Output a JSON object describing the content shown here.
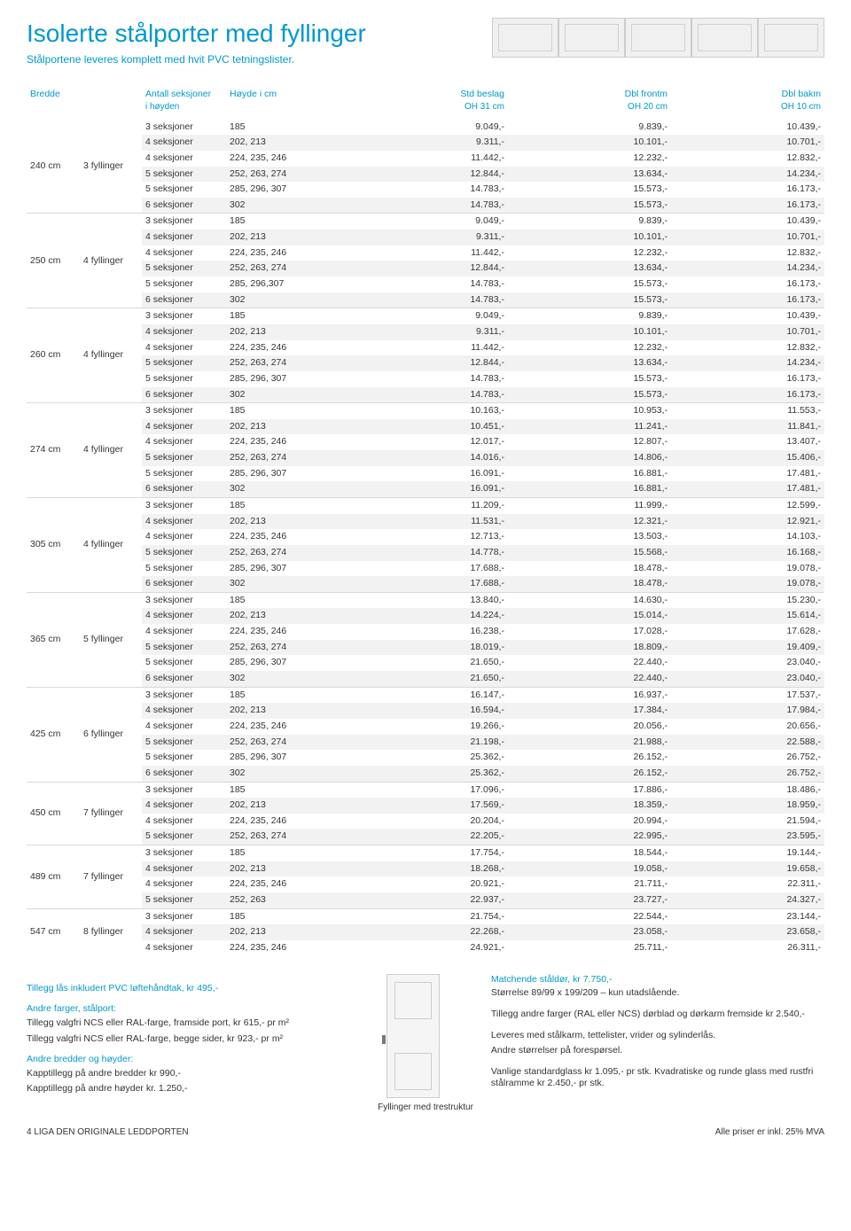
{
  "colors": {
    "primary": "#0099cc",
    "text": "#333333",
    "alt_row": "#f2f2f2",
    "border": "#d9d9d9"
  },
  "title": "Isolerte stålporter med fyllinger",
  "subtitle": "Stålportene leveres komplett med hvit PVC tetningslister.",
  "table": {
    "headers": {
      "bredde": "Bredde",
      "antall": "Antall seksjoner",
      "antall_sub": "i høyden",
      "hoyde": "Høyde i cm",
      "std": "Std beslag",
      "std_sub": "OH 31 cm",
      "frontm": "Dbl frontm",
      "frontm_sub": "OH 20 cm",
      "bakm": "Dbl bakm",
      "bakm_sub": "OH 10 cm"
    },
    "groups": [
      {
        "bredde": "240 cm",
        "fyll": "3 fyllinger",
        "rows": [
          {
            "s": "3 seksjoner",
            "h": "185",
            "p1": "9.049,-",
            "p2": "9.839,-",
            "p3": "10.439,-"
          },
          {
            "s": "4 seksjoner",
            "h": "202, 213",
            "p1": "9.311,-",
            "p2": "10.101,-",
            "p3": "10.701,-"
          },
          {
            "s": "4 seksjoner",
            "h": "224, 235, 246",
            "p1": "11.442,-",
            "p2": "12.232,-",
            "p3": "12.832,-"
          },
          {
            "s": "5 seksjoner",
            "h": "252, 263, 274",
            "p1": "12.844,-",
            "p2": "13.634,-",
            "p3": "14.234,-"
          },
          {
            "s": "5 seksjoner",
            "h": "285, 296, 307",
            "p1": "14.783,-",
            "p2": "15.573,-",
            "p3": "16.173,-"
          },
          {
            "s": "6 seksjoner",
            "h": "302",
            "p1": "14.783,-",
            "p2": "15.573,-",
            "p3": "16.173,-"
          }
        ]
      },
      {
        "bredde": "250 cm",
        "fyll": "4 fyllinger",
        "rows": [
          {
            "s": "3 seksjoner",
            "h": "185",
            "p1": "9.049,-",
            "p2": "9.839,-",
            "p3": "10.439,-"
          },
          {
            "s": "4 seksjoner",
            "h": "202, 213",
            "p1": "9.311,-",
            "p2": "10.101,-",
            "p3": "10.701,-"
          },
          {
            "s": "4 seksjoner",
            "h": "224, 235, 246",
            "p1": "11.442,-",
            "p2": "12.232,-",
            "p3": "12.832,-"
          },
          {
            "s": "5 seksjoner",
            "h": "252, 263, 274",
            "p1": "12.844,-",
            "p2": "13.634,-",
            "p3": "14.234,-"
          },
          {
            "s": "5 seksjoner",
            "h": "285, 296,307",
            "p1": "14.783,-",
            "p2": "15.573,-",
            "p3": "16.173,-"
          },
          {
            "s": "6 seksjoner",
            "h": "302",
            "p1": "14.783,-",
            "p2": "15.573,-",
            "p3": "16.173,-"
          }
        ]
      },
      {
        "bredde": "260 cm",
        "fyll": "4 fyllinger",
        "rows": [
          {
            "s": "3 seksjoner",
            "h": "185",
            "p1": "9.049,-",
            "p2": "9.839,-",
            "p3": "10.439,-"
          },
          {
            "s": "4 seksjoner",
            "h": "202, 213",
            "p1": "9.311,-",
            "p2": "10.101,-",
            "p3": "10.701,-"
          },
          {
            "s": "4 seksjoner",
            "h": "224, 235, 246",
            "p1": "11.442,-",
            "p2": "12.232,-",
            "p3": "12.832,-"
          },
          {
            "s": "5 seksjoner",
            "h": "252, 263, 274",
            "p1": "12.844,-",
            "p2": "13.634,-",
            "p3": "14.234,-"
          },
          {
            "s": "5 seksjoner",
            "h": "285, 296, 307",
            "p1": "14.783,-",
            "p2": "15.573,-",
            "p3": "16.173,-"
          },
          {
            "s": "6 seksjoner",
            "h": "302",
            "p1": "14.783,-",
            "p2": "15.573,-",
            "p3": "16.173,-"
          }
        ]
      },
      {
        "bredde": "274 cm",
        "fyll": "4 fyllinger",
        "rows": [
          {
            "s": "3 seksjoner",
            "h": "185",
            "p1": "10.163,-",
            "p2": "10.953,-",
            "p3": "11.553,-"
          },
          {
            "s": "4 seksjoner",
            "h": "202, 213",
            "p1": "10.451,-",
            "p2": "11.241,-",
            "p3": "11.841,-"
          },
          {
            "s": "4 seksjoner",
            "h": "224, 235, 246",
            "p1": "12.017,-",
            "p2": "12.807,-",
            "p3": "13.407,-"
          },
          {
            "s": "5 seksjoner",
            "h": "252, 263, 274",
            "p1": "14.016,-",
            "p2": "14.806,-",
            "p3": "15.406,-"
          },
          {
            "s": "5 seksjoner",
            "h": "285, 296, 307",
            "p1": "16.091,-",
            "p2": "16.881,-",
            "p3": "17.481,-"
          },
          {
            "s": "6 seksjoner",
            "h": "302",
            "p1": "16.091,-",
            "p2": "16.881,-",
            "p3": "17.481,-"
          }
        ]
      },
      {
        "bredde": "305 cm",
        "fyll": "4 fyllinger",
        "rows": [
          {
            "s": "3 seksjoner",
            "h": "185",
            "p1": "11.209,-",
            "p2": "11.999,-",
            "p3": "12.599,-"
          },
          {
            "s": "4 seksjoner",
            "h": "202, 213",
            "p1": "11.531,-",
            "p2": "12.321,-",
            "p3": "12.921,-"
          },
          {
            "s": "4 seksjoner",
            "h": "224, 235, 246",
            "p1": "12.713,-",
            "p2": "13.503,-",
            "p3": "14.103,-"
          },
          {
            "s": "5 seksjoner",
            "h": "252, 263, 274",
            "p1": "14.778,-",
            "p2": "15.568,-",
            "p3": "16.168,-"
          },
          {
            "s": "5 seksjoner",
            "h": "285, 296, 307",
            "p1": "17.688,-",
            "p2": "18.478,-",
            "p3": "19.078,-"
          },
          {
            "s": "6 seksjoner",
            "h": "302",
            "p1": "17.688,-",
            "p2": "18.478,-",
            "p3": "19.078,-"
          }
        ]
      },
      {
        "bredde": "365 cm",
        "fyll": "5 fyllinger",
        "rows": [
          {
            "s": "3 seksjoner",
            "h": "185",
            "p1": "13.840,-",
            "p2": "14.630,-",
            "p3": "15.230,-"
          },
          {
            "s": "4 seksjoner",
            "h": "202, 213",
            "p1": "14.224,-",
            "p2": "15.014,-",
            "p3": "15.614,-"
          },
          {
            "s": "4 seksjoner",
            "h": "224, 235, 246",
            "p1": "16.238,-",
            "p2": "17.028,-",
            "p3": "17.628,-"
          },
          {
            "s": "5 seksjoner",
            "h": "252, 263, 274",
            "p1": "18.019,-",
            "p2": "18.809,-",
            "p3": "19.409,-"
          },
          {
            "s": "5 seksjoner",
            "h": "285, 296, 307",
            "p1": "21.650,-",
            "p2": "22.440,-",
            "p3": "23.040,-"
          },
          {
            "s": "6 seksjoner",
            "h": "302",
            "p1": "21.650,-",
            "p2": "22.440,-",
            "p3": "23.040,-"
          }
        ]
      },
      {
        "bredde": "425 cm",
        "fyll": "6 fyllinger",
        "rows": [
          {
            "s": "3 seksjoner",
            "h": "185",
            "p1": "16.147,-",
            "p2": "16.937,-",
            "p3": "17.537,-"
          },
          {
            "s": "4 seksjoner",
            "h": "202, 213",
            "p1": "16.594,-",
            "p2": "17.384,-",
            "p3": "17.984,-"
          },
          {
            "s": "4 seksjoner",
            "h": "224, 235, 246",
            "p1": "19.266,-",
            "p2": "20.056,-",
            "p3": "20.656,-"
          },
          {
            "s": "5 seksjoner",
            "h": "252, 263, 274",
            "p1": "21.198,-",
            "p2": "21.988,-",
            "p3": "22.588,-"
          },
          {
            "s": "5 seksjoner",
            "h": "285, 296, 307",
            "p1": "25.362,-",
            "p2": "26.152,-",
            "p3": "26.752,-"
          },
          {
            "s": "6 seksjoner",
            "h": "302",
            "p1": "25.362,-",
            "p2": "26.152,-",
            "p3": "26.752,-"
          }
        ]
      },
      {
        "bredde": "450 cm",
        "fyll": "7 fyllinger",
        "rows": [
          {
            "s": "3 seksjoner",
            "h": "185",
            "p1": "17.096,-",
            "p2": "17.886,-",
            "p3": "18.486,-"
          },
          {
            "s": "4 seksjoner",
            "h": "202, 213",
            "p1": "17.569,-",
            "p2": "18.359,-",
            "p3": "18.959,-"
          },
          {
            "s": "4 seksjoner",
            "h": "224, 235, 246",
            "p1": "20.204,-",
            "p2": "20.994,-",
            "p3": "21.594,-"
          },
          {
            "s": "5 seksjoner",
            "h": "252, 263, 274",
            "p1": "22.205,-",
            "p2": "22.995,-",
            "p3": "23.595,-"
          }
        ]
      },
      {
        "bredde": "489 cm",
        "fyll": "7 fyllinger",
        "rows": [
          {
            "s": "3 seksjoner",
            "h": "185",
            "p1": "17.754,-",
            "p2": "18.544,-",
            "p3": "19.144,-"
          },
          {
            "s": "4 seksjoner",
            "h": "202, 213",
            "p1": "18.268,-",
            "p2": "19.058,-",
            "p3": "19.658,-"
          },
          {
            "s": "4 seksjoner",
            "h": "224, 235, 246",
            "p1": "20.921,-",
            "p2": "21.711,-",
            "p3": "22.311,-"
          },
          {
            "s": "5 seksjoner",
            "h": "252, 263",
            "p1": "22.937,-",
            "p2": "23.727,-",
            "p3": "24.327,-"
          }
        ]
      },
      {
        "bredde": "547 cm",
        "fyll": "8 fyllinger",
        "rows": [
          {
            "s": "3 seksjoner",
            "h": "185",
            "p1": "21.754,-",
            "p2": "22.544,-",
            "p3": "23.144,-"
          },
          {
            "s": "4 seksjoner",
            "h": "202, 213",
            "p1": "22.268,-",
            "p2": "23.058,-",
            "p3": "23.658,-"
          },
          {
            "s": "4 seksjoner",
            "h": "224, 235, 246",
            "p1": "24.921,-",
            "p2": "25.711,-",
            "p3": "26.311,-"
          }
        ]
      }
    ]
  },
  "bottom": {
    "left": {
      "tillegg_las": "Tillegg lås inkludert PVC løftehåndtak, kr 495,-",
      "farger_head": "Andre farger, stålport:",
      "farger1": "Tillegg valgfri NCS eller RAL-farge, framside port, kr 615,- pr m²",
      "farger2": "Tillegg valgfri NCS eller RAL-farge, begge sider, kr 923,- pr m²",
      "bredder_head": "Andre bredder og høyder:",
      "bredder1": "Kapptillegg på andre bredder kr 990,-",
      "bredder2": "Kapptillegg på andre høyder kr. 1.250,-"
    },
    "door_caption": "Fyllinger med trestruktur",
    "right": {
      "match_head": "Matchende ståldør, kr 7.750,-",
      "match1": "Størrelse 89/99 x 199/209 – kun utadslående.",
      "match2": "Tillegg andre farger (RAL eller NCS) dørblad og dørkarm fremside kr 2.540,-",
      "lev1": "Leveres med stålkarm, tettelister, vrider og sylinderlås.",
      "lev2": "Andre størrelser på forespørsel.",
      "glass1": "Vanlige standardglass kr 1.095,- pr stk. Kvadratiske og runde glass med rustfri stålramme kr 2.450,- pr stk."
    }
  },
  "footer": {
    "left": "4  LIGA  DEN ORIGINALE LEDDPORTEN",
    "right": "Alle priser er inkl. 25% MVA"
  }
}
